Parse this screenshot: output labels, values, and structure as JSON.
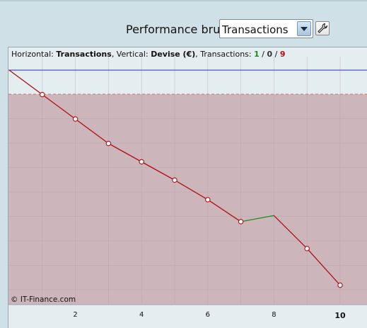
{
  "toolbar": {
    "label": "Performance brute",
    "dropdown_value": "Transactions",
    "settings_icon": "wrench-icon"
  },
  "info": {
    "prefix_h": "Horizontal:",
    "horizontal": "Transactions",
    "prefix_v": ", Vertical:",
    "vertical": "Devise (€)",
    "prefix_t": ", Transactions:",
    "count_positive": "1",
    "count_neutral": "0",
    "count_negative": "9",
    "sep": "/"
  },
  "copyright": "© IT-Finance.com",
  "colors": {
    "loss_area": "#cdb6bb",
    "loss_line": "#b01010",
    "gain_line": "#1a8c1a",
    "reference_line": "#2a2ad0",
    "dashed_line": "#d07070",
    "grid": "#b09aa0"
  },
  "chart_data": {
    "type": "line",
    "xlabel": "",
    "ylabel": "",
    "x_ticks": [
      "2",
      "4",
      "6",
      "8",
      "10"
    ],
    "xlim": [
      0,
      10.8
    ],
    "y_range_note": "no y tick labels shown",
    "points": [
      {
        "x": 0,
        "y": 0,
        "marker": false
      },
      {
        "x": 1,
        "y": -1,
        "marker": true
      },
      {
        "x": 2,
        "y": -2,
        "marker": true
      },
      {
        "x": 3,
        "y": -3,
        "marker": true
      },
      {
        "x": 4,
        "y": -3.75,
        "marker": true
      },
      {
        "x": 5,
        "y": -4.5,
        "marker": true
      },
      {
        "x": 6,
        "y": -5.3,
        "marker": true
      },
      {
        "x": 7,
        "y": -6.2,
        "marker": true
      },
      {
        "x": 8,
        "y": -5.95,
        "marker": false
      },
      {
        "x": 9,
        "y": -7.3,
        "marker": true
      },
      {
        "x": 10,
        "y": -8.8,
        "marker": true
      }
    ],
    "gain_segment": [
      7,
      8
    ]
  }
}
